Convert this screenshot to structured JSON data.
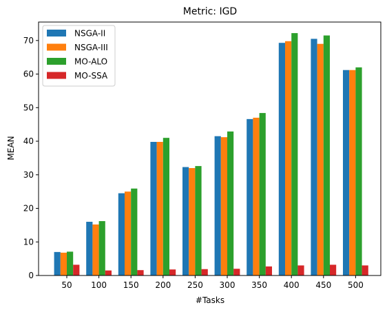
{
  "chart_data": {
    "type": "bar",
    "title": "Metric: IGD",
    "xlabel": "#Tasks",
    "ylabel": "MEAN",
    "categories": [
      "50",
      "100",
      "150",
      "200",
      "250",
      "300",
      "350",
      "400",
      "450",
      "500"
    ],
    "ylim": [
      0,
      75.5
    ],
    "yticks": [
      0,
      10,
      20,
      30,
      40,
      50,
      60,
      70
    ],
    "grid": false,
    "legend_position": "top-left",
    "series": [
      {
        "name": "NSGA-II",
        "color": "#1f77b4",
        "values": [
          7.0,
          16.0,
          24.5,
          39.8,
          32.3,
          41.5,
          46.6,
          69.3,
          70.5,
          61.2
        ]
      },
      {
        "name": "NSGA-III",
        "color": "#ff7f0e",
        "values": [
          6.8,
          15.2,
          25.0,
          39.8,
          32.0,
          41.2,
          47.0,
          69.8,
          69.0,
          61.2
        ]
      },
      {
        "name": "MO-ALO",
        "color": "#2ca02c",
        "values": [
          7.1,
          16.2,
          25.9,
          41.0,
          32.6,
          42.9,
          48.4,
          72.2,
          71.5,
          62.0
        ]
      },
      {
        "name": "MO-SSA",
        "color": "#d62728",
        "values": [
          3.2,
          1.5,
          1.6,
          1.8,
          1.9,
          2.0,
          2.7,
          3.0,
          3.2,
          3.0
        ]
      }
    ]
  }
}
